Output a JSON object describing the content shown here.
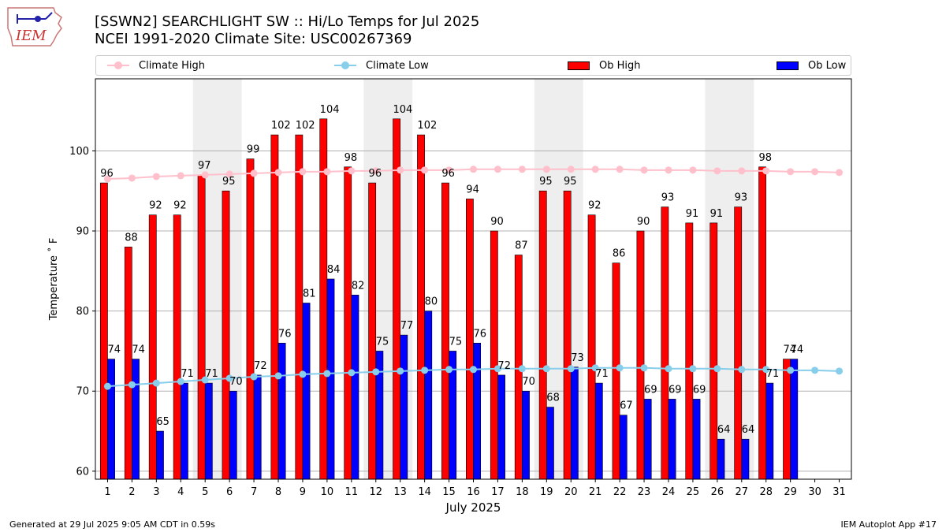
{
  "header": {
    "title_line1": "[SSWN2] SEARCHLIGHT SW :: Hi/Lo Temps for Jul 2025",
    "title_line2": "NCEI 1991-2020 Climate Site: USC00267369",
    "logo_text": "IEM"
  },
  "footer": {
    "generated": "Generated at 29 Jul 2025 9:05 AM CDT in 0.59s",
    "app": "IEM Autoplot App #17"
  },
  "legend": {
    "climate_high": "Climate High",
    "climate_low": "Climate Low",
    "ob_high": "Ob High",
    "ob_low": "Ob Low"
  },
  "colors": {
    "ob_high": "#ff0000",
    "ob_low": "#0000ff",
    "climate_high": "#ffc0cb",
    "climate_low": "#87ceeb",
    "weekend_shade": "#eeeeee",
    "grid": "#b0b0b0"
  },
  "chart_data": {
    "type": "bar",
    "title": "[SSWN2] SEARCHLIGHT SW :: Hi/Lo Temps for Jul 2025",
    "xlabel": "July 2025",
    "ylabel": "Temperature ˚ F",
    "ylim": [
      59,
      109
    ],
    "yticks": [
      60,
      70,
      80,
      90,
      100
    ],
    "categories": [
      "1",
      "2",
      "3",
      "4",
      "5",
      "6",
      "7",
      "8",
      "9",
      "10",
      "11",
      "12",
      "13",
      "14",
      "15",
      "16",
      "17",
      "18",
      "19",
      "20",
      "21",
      "22",
      "23",
      "24",
      "25",
      "26",
      "27",
      "28",
      "29",
      "30",
      "31"
    ],
    "shaded_days": [
      [
        5,
        6
      ],
      [
        12,
        13
      ],
      [
        19,
        20
      ],
      [
        26,
        27
      ]
    ],
    "series": [
      {
        "name": "Ob High",
        "kind": "bar",
        "values": [
          96,
          88,
          92,
          92,
          97,
          95,
          99,
          102,
          102,
          104,
          98,
          96,
          104,
          102,
          96,
          94,
          90,
          87,
          95,
          95,
          92,
          86,
          90,
          93,
          91,
          91,
          93,
          98,
          74,
          null,
          null
        ]
      },
      {
        "name": "Ob Low",
        "kind": "bar",
        "values": [
          74,
          74,
          65,
          71,
          71,
          70,
          72,
          76,
          81,
          84,
          82,
          75,
          77,
          80,
          75,
          76,
          72,
          70,
          68,
          73,
          71,
          67,
          69,
          69,
          69,
          64,
          64,
          71,
          74,
          null,
          null
        ]
      },
      {
        "name": "Climate High",
        "kind": "line",
        "values": [
          96.5,
          96.6,
          96.8,
          96.9,
          97.0,
          97.1,
          97.2,
          97.3,
          97.4,
          97.4,
          97.5,
          97.5,
          97.6,
          97.6,
          97.6,
          97.7,
          97.7,
          97.7,
          97.7,
          97.7,
          97.7,
          97.7,
          97.6,
          97.6,
          97.6,
          97.5,
          97.5,
          97.5,
          97.4,
          97.4,
          97.3
        ]
      },
      {
        "name": "Climate Low",
        "kind": "line",
        "values": [
          70.6,
          70.8,
          71.0,
          71.2,
          71.4,
          71.6,
          71.8,
          71.9,
          72.1,
          72.2,
          72.3,
          72.4,
          72.5,
          72.6,
          72.7,
          72.7,
          72.8,
          72.8,
          72.8,
          72.8,
          72.9,
          72.9,
          72.9,
          72.8,
          72.8,
          72.8,
          72.7,
          72.7,
          72.6,
          72.6,
          72.5
        ]
      }
    ]
  }
}
